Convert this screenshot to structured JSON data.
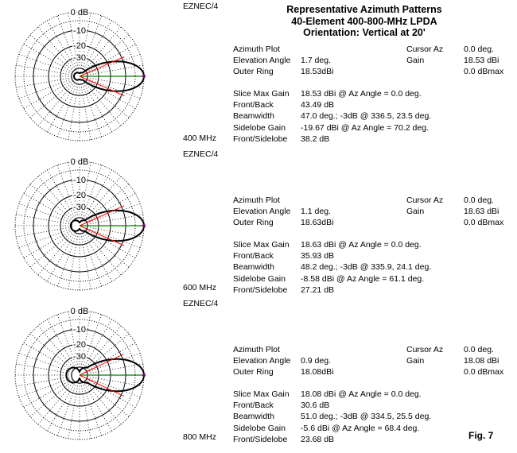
{
  "title": [
    "Representative Azimuth Patterns",
    "40-Element 400-800-MHz LPDA",
    "Orientation:  Vertical at 20'"
  ],
  "program_label": "EZNEC/4",
  "figure_label": "Fig. 7",
  "colors": {
    "pattern": "#000000",
    "beamwidth_lines": "#ff0000",
    "cursor_line": "#008000",
    "cursor_marker": "#800080",
    "grid": "#000000"
  },
  "labels": {
    "plot_type": "Azimuth Plot",
    "elevation_angle": "Elevation Angle",
    "outer_ring": "Outer Ring",
    "cursor_az": "Cursor Az",
    "gain": "Gain",
    "slice_max_gain": "Slice Max Gain",
    "front_back": "Front/Back",
    "beamwidth": "Beamwidth",
    "sidelobe_gain": "Sidelobe Gain",
    "front_sidelobe": "Front/Sidelobe"
  },
  "panels": [
    {
      "frequency": "400 MHz",
      "elevation_angle": "1.7 deg.",
      "outer_ring": "18.53dBi",
      "cursor_az": "0.0 deg.",
      "gain": "18.53 dBi",
      "gain_max": "0.0 dBmax",
      "slice_max_gain": "18.53 dBi @ Az Angle = 0.0 deg.",
      "front_back": "43.49 dB",
      "beamwidth": "47.0 deg.; -3dB @ 336.5, 23.5 deg.",
      "sidelobe_gain": "-19.67 dBi @ Az Angle = 70.2 deg.",
      "front_sidelobe": "38.2 dB",
      "ticks": [
        "0 dB",
        "-10",
        "-20",
        "-30"
      ]
    },
    {
      "frequency": "600 MHz",
      "elevation_angle": "1.1 deg.",
      "outer_ring": "18.63dBi",
      "cursor_az": "0.0 deg.",
      "gain": "18.63 dBi",
      "gain_max": "0.0 dBmax",
      "slice_max_gain": "18.63 dBi @ Az Angle = 0.0 deg.",
      "front_back": "35.93 dB",
      "beamwidth": "48.2 deg.; -3dB @ 335.9, 24.1 deg.",
      "sidelobe_gain": "-8.58 dBi @ Az Angle = 61.1 deg.",
      "front_sidelobe": "27.21 dB",
      "ticks": [
        "0 dB",
        "-10",
        "-20",
        "-30"
      ]
    },
    {
      "frequency": "800 MHz",
      "elevation_angle": "0.9 deg.",
      "outer_ring": "18.08dBi",
      "cursor_az": "0.0 deg.",
      "gain": "18.08 dBi",
      "gain_max": "0.0 dBmax",
      "slice_max_gain": "18.08 dBi @ Az Angle = 0.0 deg.",
      "front_back": "30.6 dB",
      "beamwidth": "51.0 deg.; -3dB @ 334.5, 25.5 deg.",
      "sidelobe_gain": "-5.6 dBi @ Az Angle = 68.4 deg.",
      "front_sidelobe": "23.68 dB",
      "ticks": [
        "0 dB",
        "-10",
        "-20",
        "-30"
      ]
    }
  ],
  "chart_data": [
    {
      "type": "polar",
      "frequency": "400 MHz",
      "angle_unit": "deg",
      "r_unit": "dBmax",
      "rings_db": [
        0,
        -10,
        -20,
        -30
      ],
      "max_gain_dbi": 18.53,
      "beamwidth_deg": 47.0,
      "half_power_angles": [
        336.5,
        23.5
      ],
      "cursor_az": 0.0,
      "front_back_db": 43.49,
      "sidelobe": {
        "az": 70.2,
        "gain_dbi": -19.67
      }
    },
    {
      "type": "polar",
      "frequency": "600 MHz",
      "angle_unit": "deg",
      "r_unit": "dBmax",
      "rings_db": [
        0,
        -10,
        -20,
        -30
      ],
      "max_gain_dbi": 18.63,
      "beamwidth_deg": 48.2,
      "half_power_angles": [
        335.9,
        24.1
      ],
      "cursor_az": 0.0,
      "front_back_db": 35.93,
      "sidelobe": {
        "az": 61.1,
        "gain_dbi": -8.58
      }
    },
    {
      "type": "polar",
      "frequency": "800 MHz",
      "angle_unit": "deg",
      "r_unit": "dBmax",
      "rings_db": [
        0,
        -10,
        -20,
        -30
      ],
      "max_gain_dbi": 18.08,
      "beamwidth_deg": 51.0,
      "half_power_angles": [
        334.5,
        25.5
      ],
      "cursor_az": 0.0,
      "front_back_db": 30.6,
      "sidelobe": {
        "az": 68.4,
        "gain_dbi": -5.6
      }
    }
  ]
}
